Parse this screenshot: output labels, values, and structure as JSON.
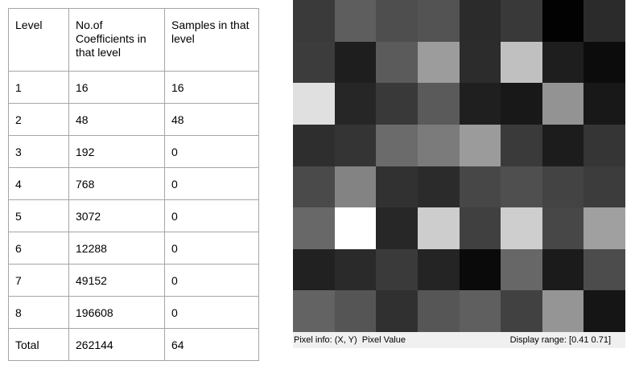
{
  "table": {
    "headers": [
      "Level",
      "No.of Coefficients in that level",
      "Samples in that level"
    ],
    "rows": [
      {
        "level": "1",
        "coefficients": "16",
        "samples": "16"
      },
      {
        "level": "2",
        "coefficients": "48",
        "samples": "48"
      },
      {
        "level": "3",
        "coefficients": "192",
        "samples": "0"
      },
      {
        "level": "4",
        "coefficients": "768",
        "samples": "0"
      },
      {
        "level": "5",
        "coefficients": "3072",
        "samples": "0"
      },
      {
        "level": "6",
        "coefficients": "12288",
        "samples": "0"
      },
      {
        "level": "7",
        "coefficients": "49152",
        "samples": "0"
      },
      {
        "level": "8",
        "coefficients": "196608",
        "samples": "0"
      }
    ],
    "total": {
      "label": "Total",
      "coefficients": "262144",
      "samples": "64"
    }
  },
  "viewer": {
    "pixel_colors": [
      [
        "#3a3a3a",
        "#5e5e5e",
        "#4e4e4e",
        "#535353",
        "#2b2b2b",
        "#393939",
        "#020202",
        "#2b2b2b"
      ],
      [
        "#3c3c3c",
        "#1e1e1e",
        "#5b5b5b",
        "#9c9c9c",
        "#2c2c2c",
        "#c0c0c0",
        "#1e1e1e",
        "#0c0c0c"
      ],
      [
        "#e0e0e0",
        "#262626",
        "#393939",
        "#5a5a5a",
        "#1f1f1f",
        "#181818",
        "#939393",
        "#181818"
      ],
      [
        "#2e2e2e",
        "#343434",
        "#6b6b6b",
        "#7b7b7b",
        "#9b9b9b",
        "#3a3a3a",
        "#1c1c1c",
        "#353535"
      ],
      [
        "#4a4a4a",
        "#838383",
        "#313131",
        "#2b2b2b",
        "#474747",
        "#4f4f4f",
        "#434343",
        "#3c3c3c"
      ],
      [
        "#686868",
        "#ffffff",
        "#272727",
        "#cdcdcd",
        "#404040",
        "#cecece",
        "#474747",
        "#a0a0a0"
      ],
      [
        "#212121",
        "#2a2a2a",
        "#3a3a3a",
        "#242424",
        "#0a0a0a",
        "#676767",
        "#1b1b1b",
        "#4c4c4c"
      ],
      [
        "#636363",
        "#555555",
        "#303030",
        "#565656",
        "#5f5f5f",
        "#414141",
        "#959595",
        "#151515"
      ]
    ],
    "status": {
      "pixel_info_label": "Pixel info: (X, Y)  Pixel Value",
      "display_range_label": "Display range: [0.41 0.71]"
    }
  }
}
